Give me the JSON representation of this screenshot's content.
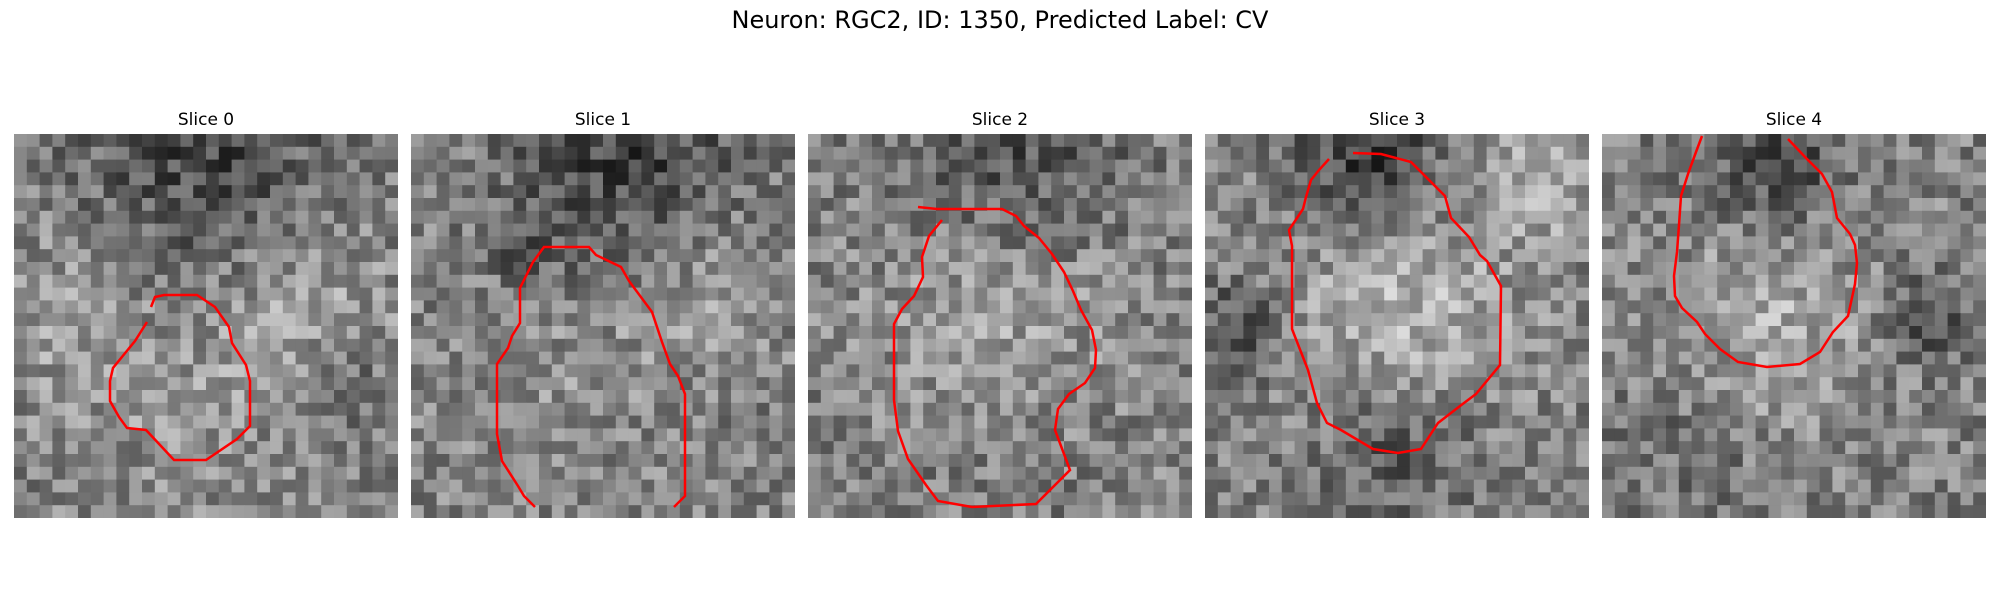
{
  "figure": {
    "title": "Neuron: RGC2, ID: 1350, Predicted Label: CV",
    "contour_color": "#ff0000"
  },
  "panels": [
    {
      "title": "Slice 0"
    },
    {
      "title": "Slice 1"
    },
    {
      "title": "Slice 2"
    },
    {
      "title": "Slice 3"
    },
    {
      "title": "Slice 4"
    }
  ]
}
